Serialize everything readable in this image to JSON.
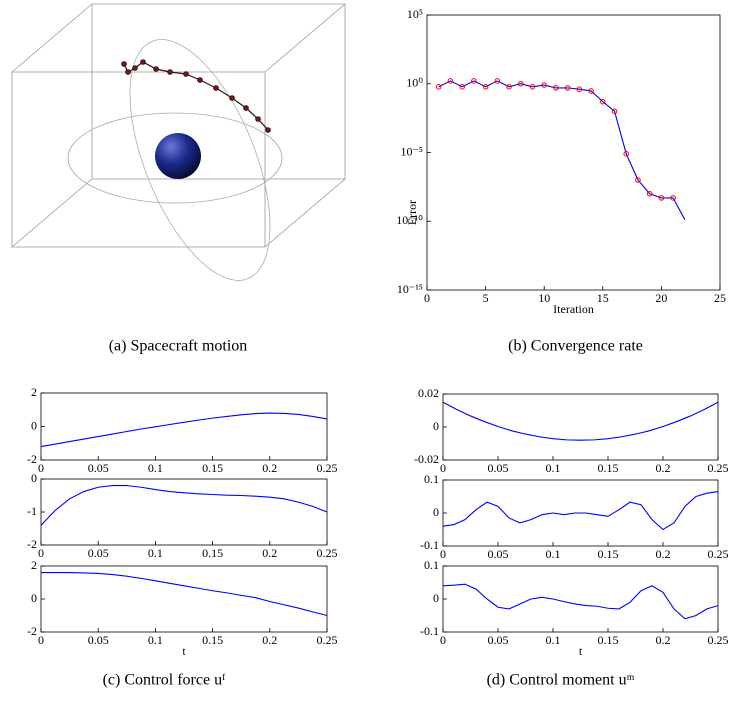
{
  "panel_a": {
    "caption": "(a) Spacecraft motion"
  },
  "chart_data": [
    {
      "type": "line",
      "yscale": "log",
      "xlabel": "Iteration",
      "ylabel": "Error",
      "caption": "(b) Convergence rate",
      "xlim": [
        0,
        25
      ],
      "xticks": [
        0,
        5,
        10,
        15,
        20,
        25
      ],
      "ylim": [
        1e-15,
        100000
      ],
      "yticks": [
        {
          "value": 1e-15,
          "label": "10⁻¹⁵"
        },
        {
          "value": 1e-10,
          "label": "10⁻¹⁰"
        },
        {
          "value": 1e-05,
          "label": "10⁻⁵"
        },
        {
          "value": 1,
          "label": "10⁰"
        },
        {
          "value": 100000,
          "label": "10⁵"
        }
      ],
      "x": [
        1,
        2,
        3,
        4,
        5,
        6,
        7,
        8,
        9,
        10,
        11,
        12,
        13,
        14,
        15,
        16,
        17,
        18,
        19,
        20,
        21,
        22
      ],
      "series": [
        {
          "color": "#0000ff",
          "values": [
            0.6,
            1.6,
            0.6,
            1.6,
            0.6,
            1.6,
            0.6,
            1,
            0.6,
            0.8,
            0.5,
            0.5,
            0.4,
            0.3,
            0.05,
            0.01,
            8e-06,
            1e-07,
            1e-08,
            5e-09,
            5e-09,
            1.3e-10
          ]
        },
        {
          "color": "#ff0000",
          "marker": true,
          "values": [
            0.6,
            1.6,
            0.6,
            1.6,
            0.6,
            1.6,
            0.6,
            1,
            0.6,
            0.8,
            0.5,
            0.5,
            0.4,
            0.3,
            0.05,
            0.01,
            8e-06,
            1e-07,
            1e-08,
            5e-09,
            5e-09,
            null
          ]
        }
      ]
    },
    {
      "type": "line",
      "color": "#0000ff",
      "xlim": [
        0,
        0.25
      ],
      "xticks": [
        0,
        0.05,
        0.1,
        0.15,
        0.2,
        0.25
      ],
      "ylim": [
        -2,
        2
      ],
      "yticks": [
        -2,
        0,
        2
      ],
      "x": [
        0,
        0.0125,
        0.025,
        0.0375,
        0.05,
        0.0625,
        0.075,
        0.0875,
        0.1,
        0.1125,
        0.125,
        0.1375,
        0.15,
        0.1625,
        0.175,
        0.1875,
        0.2,
        0.2125,
        0.225,
        0.2375,
        0.25
      ],
      "values": [
        -1.2,
        -1.05,
        -0.9,
        -0.75,
        -0.6,
        -0.45,
        -0.3,
        -0.15,
        -0.02,
        0.12,
        0.25,
        0.38,
        0.5,
        0.6,
        0.7,
        0.77,
        0.8,
        0.78,
        0.72,
        0.6,
        0.45
      ]
    },
    {
      "type": "line",
      "color": "#0000ff",
      "xlim": [
        0,
        0.25
      ],
      "xticks": [
        0,
        0.05,
        0.1,
        0.15,
        0.2,
        0.25
      ],
      "ylim": [
        -2,
        0
      ],
      "yticks": [
        -2,
        -1,
        0
      ],
      "x": [
        0,
        0.0125,
        0.025,
        0.0375,
        0.05,
        0.0625,
        0.075,
        0.0875,
        0.1,
        0.1125,
        0.125,
        0.1375,
        0.15,
        0.1625,
        0.175,
        0.1875,
        0.2,
        0.2125,
        0.225,
        0.2375,
        0.25
      ],
      "values": [
        -1.4,
        -0.95,
        -0.6,
        -0.38,
        -0.25,
        -0.2,
        -0.2,
        -0.25,
        -0.32,
        -0.38,
        -0.42,
        -0.45,
        -0.47,
        -0.49,
        -0.5,
        -0.52,
        -0.55,
        -0.6,
        -0.7,
        -0.83,
        -1.0
      ]
    },
    {
      "type": "line",
      "color": "#0000ff",
      "xlabel": "t",
      "caption": "(c) Control force uᶠ",
      "xlim": [
        0,
        0.25
      ],
      "xticks": [
        0,
        0.05,
        0.1,
        0.15,
        0.2,
        0.25
      ],
      "ylim": [
        -2,
        2
      ],
      "yticks": [
        -2,
        0,
        2
      ],
      "x": [
        0,
        0.0125,
        0.025,
        0.0375,
        0.05,
        0.0625,
        0.075,
        0.0875,
        0.1,
        0.1125,
        0.125,
        0.1375,
        0.15,
        0.1625,
        0.175,
        0.1875,
        0.2,
        0.2125,
        0.225,
        0.2375,
        0.25
      ],
      "values": [
        1.6,
        1.6,
        1.6,
        1.58,
        1.55,
        1.48,
        1.38,
        1.25,
        1.1,
        0.95,
        0.8,
        0.65,
        0.5,
        0.37,
        0.22,
        0.08,
        -0.15,
        -0.35,
        -0.55,
        -0.78,
        -1.0
      ]
    },
    {
      "type": "line",
      "color": "#0000ff",
      "xlim": [
        0,
        0.25
      ],
      "xticks": [
        0,
        0.05,
        0.1,
        0.15,
        0.2,
        0.25
      ],
      "ylim": [
        -0.02,
        0.02
      ],
      "yticks": [
        -0.02,
        0,
        0.02
      ],
      "x": [
        0,
        0.0125,
        0.025,
        0.0375,
        0.05,
        0.0625,
        0.075,
        0.0875,
        0.1,
        0.1125,
        0.125,
        0.1375,
        0.15,
        0.1625,
        0.175,
        0.1875,
        0.2,
        0.2125,
        0.225,
        0.2375,
        0.25
      ],
      "values": [
        0.015,
        0.0106,
        0.0067,
        0.0033,
        0.0003,
        -0.0023,
        -0.0043,
        -0.0059,
        -0.0071,
        -0.0078,
        -0.008,
        -0.0078,
        -0.0071,
        -0.0059,
        -0.0043,
        -0.0023,
        0.0003,
        0.0033,
        0.0067,
        0.0106,
        0.015
      ]
    },
    {
      "type": "line",
      "color": "#0000ff",
      "xlim": [
        0,
        0.25
      ],
      "xticks": [
        0,
        0.05,
        0.1,
        0.15,
        0.2,
        0.25
      ],
      "ylim": [
        -0.1,
        0.1
      ],
      "yticks": [
        -0.1,
        0,
        0.1
      ],
      "x": [
        0,
        0.01,
        0.02,
        0.03,
        0.04,
        0.05,
        0.06,
        0.07,
        0.08,
        0.09,
        0.1,
        0.11,
        0.12,
        0.13,
        0.14,
        0.15,
        0.16,
        0.17,
        0.18,
        0.19,
        0.2,
        0.21,
        0.22,
        0.23,
        0.24,
        0.25
      ],
      "values": [
        -0.04,
        -0.035,
        -0.02,
        0.01,
        0.033,
        0.02,
        -0.015,
        -0.03,
        -0.02,
        -0.005,
        0,
        -0.005,
        0,
        0,
        -0.005,
        -0.01,
        0.01,
        0.033,
        0.025,
        -0.02,
        -0.05,
        -0.03,
        0.02,
        0.05,
        0.06,
        0.065
      ]
    },
    {
      "type": "line",
      "color": "#0000ff",
      "xlabel": "t",
      "caption": "(d) Control moment uᵐ",
      "xlim": [
        0,
        0.25
      ],
      "xticks": [
        0,
        0.05,
        0.1,
        0.15,
        0.2,
        0.25
      ],
      "ylim": [
        -0.1,
        0.1
      ],
      "yticks": [
        -0.1,
        0,
        0.1
      ],
      "x": [
        0,
        0.01,
        0.02,
        0.03,
        0.04,
        0.05,
        0.06,
        0.07,
        0.08,
        0.09,
        0.1,
        0.11,
        0.12,
        0.13,
        0.14,
        0.15,
        0.16,
        0.17,
        0.18,
        0.19,
        0.2,
        0.21,
        0.22,
        0.23,
        0.24,
        0.25
      ],
      "values": [
        0.04,
        0.042,
        0.045,
        0.03,
        0,
        -0.025,
        -0.03,
        -0.015,
        0,
        0.005,
        0,
        -0.008,
        -0.015,
        -0.02,
        -0.022,
        -0.028,
        -0.03,
        -0.01,
        0.025,
        0.04,
        0.02,
        -0.03,
        -0.06,
        -0.05,
        -0.03,
        -0.02
      ]
    }
  ]
}
